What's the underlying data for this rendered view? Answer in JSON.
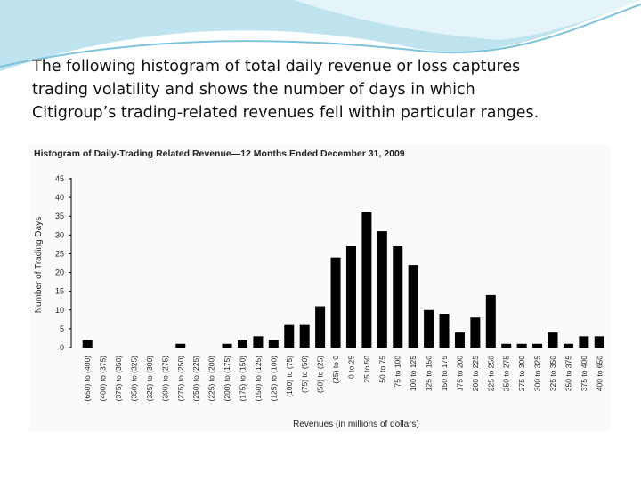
{
  "slide_text": [
    "The following histogram of total daily revenue or loss captures",
    "trading volatility and shows the number of days in which",
    "Citigroup’s trading-related revenues fell within particular ranges."
  ],
  "chart_data": {
    "type": "bar",
    "title": "Histogram of Daily-Trading Related Revenue—12 Months Ended December 31, 2009",
    "x_label": "Revenues (in millions of dollars)",
    "y_label": "Number of Trading Days",
    "categories": [
      "(650) to (400)",
      "(400) to (375)",
      "(375) to (350)",
      "(350) to (325)",
      "(325) to (300)",
      "(300) to (275)",
      "(275) to (250)",
      "(250) to (225)",
      "(225) to (200)",
      "(200) to (175)",
      "(175) to (150)",
      "(150) to (125)",
      "(125) to (100)",
      "(100) to (75)",
      "(75) to (50)",
      "(50) to (25)",
      "(25) to 0",
      "0 to 25",
      "25 to 50",
      "50 to 75",
      "75 to 100",
      "100 to 125",
      "125 to 150",
      "150 to 175",
      "175 to 200",
      "200 to 225",
      "225 to 250",
      "250 to 275",
      "275 to 300",
      "300 to 325",
      "325 to 350",
      "350 to 375",
      "375 to 400",
      "400 to 650"
    ],
    "values": [
      2,
      0,
      0,
      0,
      0,
      0,
      1,
      0,
      0,
      1,
      2,
      3,
      2,
      6,
      6,
      11,
      24,
      27,
      36,
      31,
      27,
      22,
      10,
      9,
      4,
      8,
      14,
      1,
      1,
      1,
      4,
      1,
      3,
      3
    ],
    "color": "#000000",
    "ylim": [
      0,
      45
    ],
    "yticks": [
      0,
      5,
      10,
      15,
      20,
      25,
      30,
      35,
      40,
      45
    ],
    "grid": false
  }
}
